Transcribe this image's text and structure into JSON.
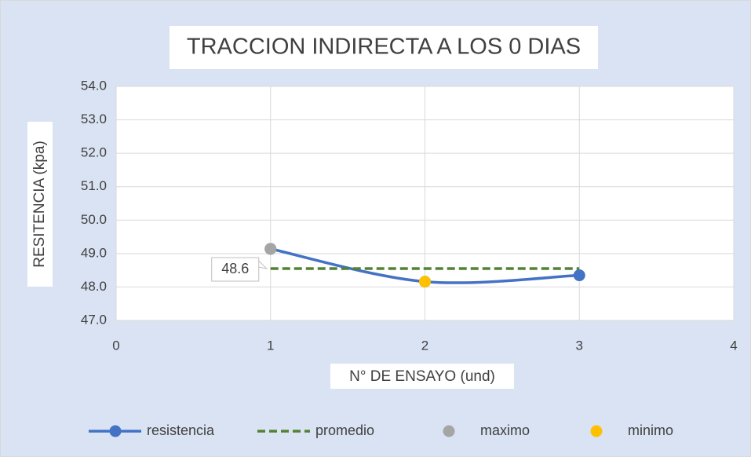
{
  "chart_data": {
    "type": "line",
    "title": "TRACCION INDIRECTA A LOS 0 DIAS",
    "x_label": "N° DE ENSAYO (und)",
    "y_label": "RESITENCIA (kpa)",
    "xlim": [
      0,
      4
    ],
    "xticks": [
      0,
      1,
      2,
      3,
      4
    ],
    "ylim": [
      47,
      54
    ],
    "yticks": [
      {
        "value": 47,
        "label": "47.0"
      },
      {
        "value": 48,
        "label": "48.0"
      },
      {
        "value": 49,
        "label": "49.0"
      },
      {
        "value": 50,
        "label": "50.0"
      },
      {
        "value": 51,
        "label": "51.0"
      },
      {
        "value": 52,
        "label": "52.0"
      },
      {
        "value": 53,
        "label": "53.0"
      },
      {
        "value": 54,
        "label": "54.0"
      }
    ],
    "grid": true,
    "legend": "bottom",
    "series": [
      {
        "name": "resistencia",
        "color": "#4472c4",
        "x": [
          1,
          2,
          3
        ],
        "values": [
          49.14,
          48.16,
          48.35
        ],
        "line": "smooth",
        "marker": true
      },
      {
        "name": "promedio",
        "color": "#548235",
        "x": [
          1,
          3
        ],
        "values": [
          48.55,
          48.55
        ],
        "line": "dashed",
        "marker": false,
        "value_labels": [
          "48.6",
          null
        ]
      },
      {
        "name": "maximo",
        "color": "#a5a5a5",
        "x": [
          1
        ],
        "values": [
          49.14
        ],
        "line": "none",
        "marker": true
      },
      {
        "name": "minimo",
        "color": "#ffc000",
        "x": [
          2
        ],
        "values": [
          48.16
        ],
        "line": "none",
        "marker": true
      }
    ]
  }
}
